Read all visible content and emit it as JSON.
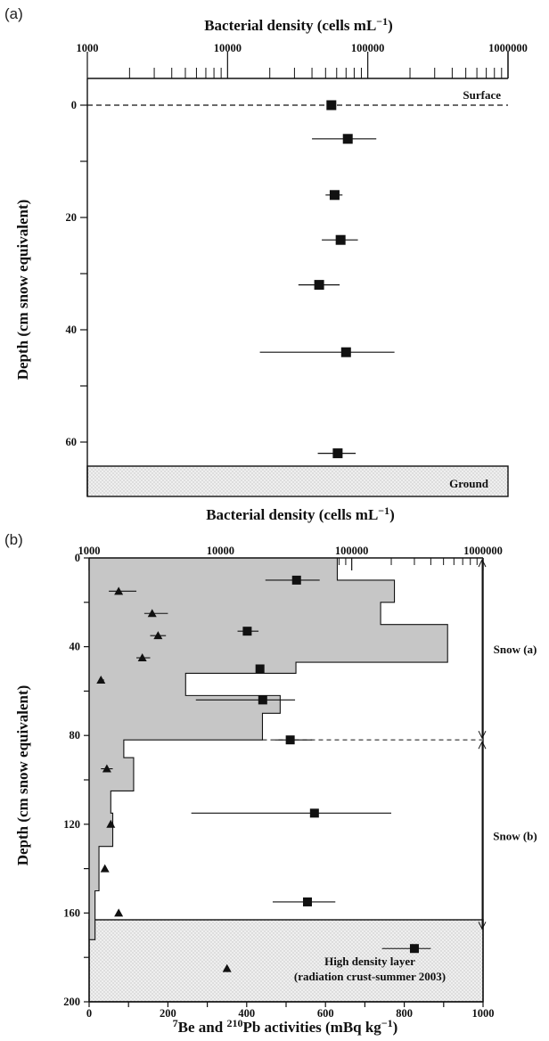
{
  "chart_data": [
    {
      "panel": "(a)",
      "type": "scatter",
      "xlabel": "Bacterial density (cells mL⁻¹)",
      "ylabel": "Depth (cm snow equivalent)",
      "x_scale": "log",
      "xlim": [
        1000,
        1000000
      ],
      "ylim": [
        70,
        -5
      ],
      "x_tick_labels": [
        "1000",
        "10000",
        "100000",
        "1000000"
      ],
      "y_tick_labels": [
        "0",
        "20",
        "40",
        "60"
      ],
      "series": [
        {
          "marker": "square",
          "points": [
            {
              "depth": 0,
              "value": 55000,
              "err_low": null,
              "err_high": null
            },
            {
              "depth": 6,
              "value": 72000,
              "err_low": 40000,
              "err_high": 115000
            },
            {
              "depth": 16,
              "value": 58000,
              "err_low": 50000,
              "err_high": 66000
            },
            {
              "depth": 24,
              "value": 64000,
              "err_low": 47000,
              "err_high": 85000
            },
            {
              "depth": 32,
              "value": 45000,
              "err_low": 32000,
              "err_high": 63000
            },
            {
              "depth": 44,
              "value": 70000,
              "err_low": 17000,
              "err_high": 155000
            },
            {
              "depth": 62,
              "value": 61000,
              "err_low": 44000,
              "err_high": 82000
            }
          ]
        }
      ],
      "annotations": {
        "surface": "Surface",
        "ground": "Ground"
      },
      "ground_depth": 65
    },
    {
      "panel": "(b)",
      "type": "scatter",
      "xlabel_bottom": "⁷Be and ²¹⁰Pb activities (mBq kg⁻¹)",
      "xlabel_top": "Bacterial density (cells mL⁻¹)",
      "ylabel": "Depth (cm snow equivalent)",
      "bottom_axis": {
        "scale": "linear",
        "xlim": [
          0,
          1000
        ],
        "tick_labels": [
          "0",
          "200",
          "400",
          "600",
          "800",
          "1000"
        ]
      },
      "top_axis": {
        "scale": "log",
        "xlim": [
          1000,
          1000000
        ],
        "tick_labels": [
          "1000",
          "10000",
          "100000",
          "1000000"
        ]
      },
      "ylim": [
        200,
        0
      ],
      "y_tick_labels": [
        "0",
        "40",
        "80",
        "120",
        "160",
        "200"
      ],
      "step_profile_7Be": [
        {
          "top": 0,
          "bottom": 10,
          "value": 630
        },
        {
          "top": 10,
          "bottom": 20,
          "value": 775
        },
        {
          "top": 20,
          "bottom": 30,
          "value": 740
        },
        {
          "top": 30,
          "bottom": 47,
          "value": 910
        },
        {
          "top": 47,
          "bottom": 52,
          "value": 525
        },
        {
          "top": 52,
          "bottom": 62,
          "value": 245
        },
        {
          "top": 62,
          "bottom": 70,
          "value": 485
        },
        {
          "top": 70,
          "bottom": 82,
          "value": 440
        },
        {
          "top": 82,
          "bottom": 90,
          "value": 88
        },
        {
          "top": 90,
          "bottom": 105,
          "value": 113
        },
        {
          "top": 105,
          "bottom": 115,
          "value": 55
        },
        {
          "top": 115,
          "bottom": 130,
          "value": 60
        },
        {
          "top": 130,
          "bottom": 150,
          "value": 25
        },
        {
          "top": 150,
          "bottom": 172,
          "value": 15
        }
      ],
      "series": [
        {
          "marker": "triangle",
          "axis": "bottom",
          "points": [
            {
              "depth": 15,
              "value": 75,
              "err_low": 50,
              "err_high": 120
            },
            {
              "depth": 25,
              "value": 160,
              "err_low": 140,
              "err_high": 200
            },
            {
              "depth": 35,
              "value": 175,
              "err_low": 155,
              "err_high": 195
            },
            {
              "depth": 45,
              "value": 135,
              "err_low": 120,
              "err_high": 155
            },
            {
              "depth": 55,
              "value": 30,
              "err_low": 25,
              "err_high": 38
            },
            {
              "depth": 95,
              "value": 45,
              "err_low": 30,
              "err_high": 60
            },
            {
              "depth": 120,
              "value": 55,
              "err_low": 50,
              "err_high": 62
            },
            {
              "depth": 140,
              "value": 40,
              "err_low": 35,
              "err_high": 45
            },
            {
              "depth": 160,
              "value": 75,
              "err_low": null,
              "err_high": null
            },
            {
              "depth": 185,
              "value": 350,
              "err_low": null,
              "err_high": null
            }
          ]
        },
        {
          "marker": "square",
          "axis": "top",
          "points": [
            {
              "depth": 10,
              "value": 38000,
              "err_low": 22000,
              "err_high": 57000
            },
            {
              "depth": 33,
              "value": 16000,
              "err_low": 13500,
              "err_high": 19500
            },
            {
              "depth": 50,
              "value": 20000,
              "err_low": null,
              "err_high": null
            },
            {
              "depth": 64,
              "value": 21000,
              "err_low": 6500,
              "err_high": 37000
            },
            {
              "depth": 82,
              "value": 34000,
              "err_low": 26000,
              "err_high": 50000
            },
            {
              "depth": 115,
              "value": 52000,
              "err_low": 6000,
              "err_high": 200000
            },
            {
              "depth": 155,
              "value": 46000,
              "err_low": 25000,
              "err_high": 75000
            },
            {
              "depth": 176,
              "value": 300000,
              "err_low": 170000,
              "err_high": 400000
            }
          ]
        }
      ],
      "annotations": {
        "snow_a": "Snow (a)",
        "snow_b": "Snow (b)",
        "hd_line1": "High density layer",
        "hd_line2": "(radiation crust-summer 2003)"
      },
      "snow_a_range": [
        0,
        82
      ],
      "snow_b_range": [
        82,
        168
      ],
      "high_density_top": 172
    }
  ],
  "colors": {
    "shade": "#c6c6c6",
    "ink": "#111111",
    "ground_fill": "#ebebeb"
  }
}
